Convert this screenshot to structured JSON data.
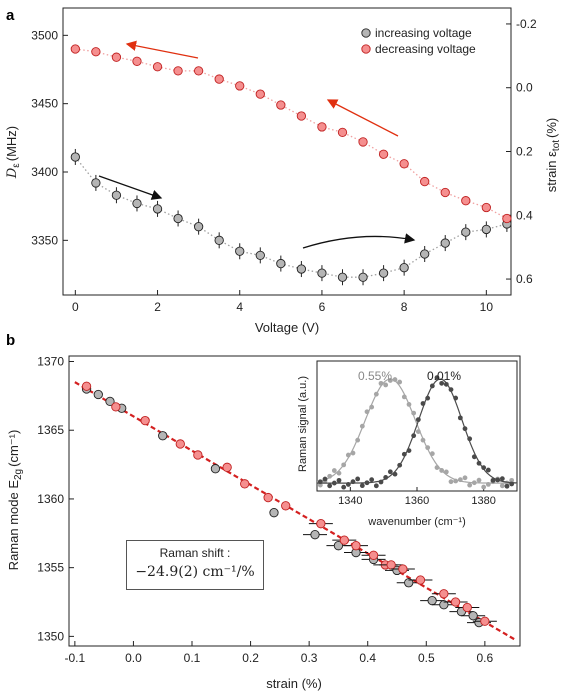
{
  "chart_data": [
    {
      "panel": "a",
      "type": "scatter",
      "xlabel": "Voltage (V)",
      "ylabel": "D_ε (MHz)",
      "ylabel_main": "D",
      "ylabel_sub": "ε",
      "ylabel_unit": "(MHz)",
      "y2label": "strain ε_tot (%)",
      "y2label_main": "strain ε",
      "y2label_sub": "tot",
      "y2label_unit": "(%)",
      "xlim": [
        -0.3,
        10.6
      ],
      "ylim": [
        3310,
        3520
      ],
      "y2lim": [
        0.65,
        -0.25
      ],
      "xticks": [
        "0",
        "2",
        "4",
        "6",
        "8",
        "10"
      ],
      "yticks": [
        "3350",
        "3400",
        "3450",
        "3500"
      ],
      "y2ticks": [
        "-0.2",
        "0.0",
        "0.2",
        "0.4",
        "0.6"
      ],
      "legend": {
        "position": "top-right"
      },
      "series": [
        {
          "name": "increasing voltage",
          "color": "#b5b5b5",
          "x": [
            0,
            0.5,
            1,
            1.5,
            2,
            2.5,
            3,
            3.5,
            4,
            4.5,
            5,
            5.5,
            6,
            6.5,
            7,
            7.5,
            8,
            8.5,
            9,
            9.5,
            10,
            10.5
          ],
          "y": [
            3411,
            3392,
            3383,
            3377,
            3373,
            3366,
            3360,
            3350,
            3342,
            3339,
            3333,
            3329,
            3326,
            3323,
            3323,
            3326,
            3330,
            3340,
            3348,
            3356,
            3358,
            3362
          ]
        },
        {
          "name": "decreasing voltage",
          "color": "#f58f8f",
          "x": [
            0,
            0.5,
            1,
            1.5,
            2,
            2.5,
            3,
            3.5,
            4,
            4.5,
            5,
            5.5,
            6,
            6.5,
            7,
            7.5,
            8,
            8.5,
            9,
            9.5,
            10,
            10.5
          ],
          "y": [
            3490,
            3488,
            3484,
            3481,
            3477,
            3474,
            3474,
            3468,
            3463,
            3457,
            3449,
            3441,
            3433,
            3429,
            3422,
            3413,
            3406,
            3393,
            3385,
            3379,
            3374,
            3366
          ]
        }
      ]
    },
    {
      "panel": "b",
      "type": "scatter",
      "xlabel": "strain (%)",
      "ylabel": "Raman mode E_2g (cm⁻¹)",
      "ylabel_main": "Raman mode E",
      "ylabel_sub": "2g",
      "ylabel_unit": "(cm⁻¹)",
      "xlim": [
        -0.11,
        0.66
      ],
      "ylim": [
        1349.3,
        1370.4
      ],
      "xticks": [
        "-0.1",
        "0.0",
        "0.1",
        "0.2",
        "0.3",
        "0.4",
        "0.5",
        "0.6"
      ],
      "yticks": [
        "1350",
        "1355",
        "1360",
        "1365",
        "1370"
      ],
      "fit_line": {
        "color": "#d42020",
        "x": [
          -0.1,
          0.65
        ],
        "y": [
          1368.5,
          1349.8
        ]
      },
      "annotation_title": "Raman shift :",
      "annotation_value": "−24.9(2) cm⁻¹/%",
      "series": [
        {
          "name": "increasing",
          "color": "#b5b5b5",
          "x": [
            -0.08,
            -0.06,
            -0.04,
            -0.02,
            0.05,
            0.14,
            0.24,
            0.31,
            0.35,
            0.38,
            0.41,
            0.45,
            0.47,
            0.51,
            0.53,
            0.56,
            0.58,
            0.59
          ],
          "y": [
            1368.0,
            1367.6,
            1367.1,
            1366.6,
            1364.6,
            1362.2,
            1359.0,
            1357.4,
            1356.6,
            1356.1,
            1355.6,
            1354.8,
            1353.9,
            1352.6,
            1352.3,
            1351.8,
            1351.5,
            1351.0
          ]
        },
        {
          "name": "decreasing",
          "color": "#f58f8f",
          "x": [
            -0.08,
            -0.03,
            0.02,
            0.08,
            0.11,
            0.16,
            0.19,
            0.23,
            0.26,
            0.32,
            0.36,
            0.38,
            0.41,
            0.43,
            0.44,
            0.46,
            0.49,
            0.53,
            0.55,
            0.57,
            0.6
          ],
          "y": [
            1368.2,
            1366.7,
            1365.7,
            1364.0,
            1363.2,
            1362.3,
            1361.1,
            1360.1,
            1359.5,
            1358.2,
            1357.0,
            1356.6,
            1355.9,
            1355.2,
            1355.2,
            1354.9,
            1354.1,
            1353.1,
            1352.5,
            1352.1,
            1351.1
          ]
        }
      ]
    },
    {
      "panel": "b-inset",
      "type": "scatter",
      "xlabel": "wavenumber (cm⁻¹)",
      "ylabel": "Raman signal (a.u.)",
      "xlim": [
        1330,
        1390
      ],
      "ylim": [
        0,
        1.15
      ],
      "xticks": [
        "1340",
        "1360",
        "1380"
      ],
      "series": [
        {
          "name": "0.55%",
          "color": "#a6a6a6",
          "center": 1352,
          "width": 7.5,
          "amplitude": 1.0
        },
        {
          "name": "0.01%",
          "color": "#4a4a4a",
          "center": 1367,
          "width": 6.5,
          "amplitude": 1.0
        }
      ]
    }
  ]
}
